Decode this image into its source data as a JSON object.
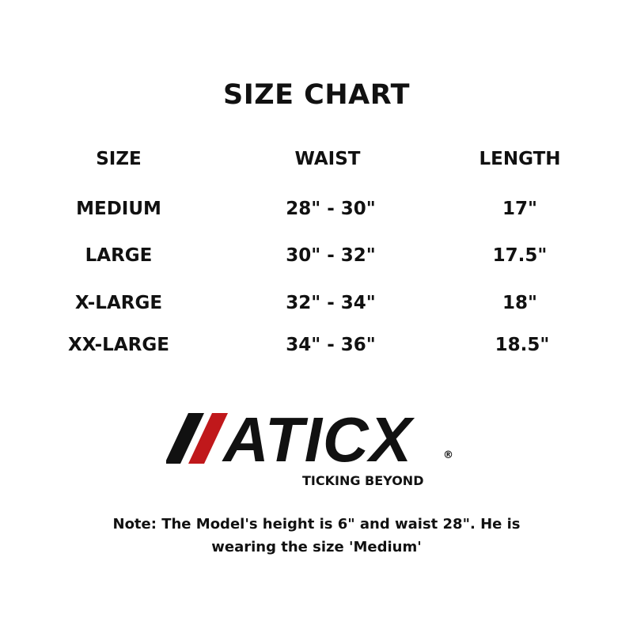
{
  "title": "SIZE CHART",
  "table": {
    "headers": [
      "SIZE",
      "WAIST",
      "LENGTH"
    ],
    "rows": [
      [
        "MEDIUM",
        "28\" - 30\"",
        "17\""
      ],
      [
        "LARGE",
        "30\" - 32\"",
        "17.5\""
      ],
      [
        "X-LARGE",
        "32\" - 34\"",
        "18\""
      ],
      [
        "XX-LARGE",
        "34\" - 36\"",
        "18.5\""
      ]
    ]
  },
  "logo": {
    "brand": "ATICX",
    "registered": "®",
    "tagline": "TICKING BEYOND",
    "accent_color": "#c0181b"
  },
  "note": {
    "line1": "Note: The Model's height is 6\" and waist 28\". He is",
    "line2": "wearing the size 'Medium'"
  }
}
